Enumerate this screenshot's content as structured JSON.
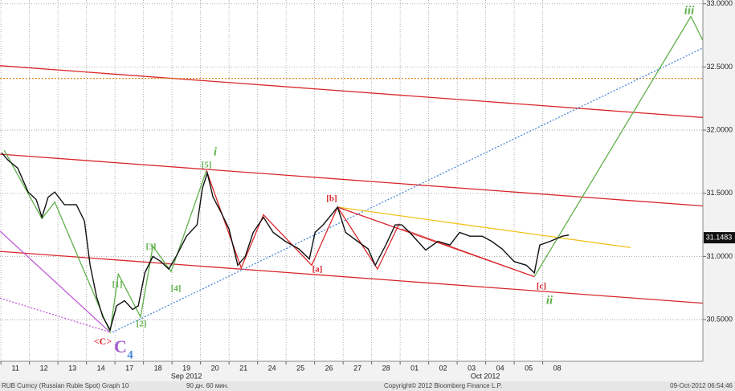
{
  "chart_data": {
    "type": "line",
    "xlim": [
      -0.54,
      24.11
    ],
    "ylim": [
      30.17,
      33.03
    ],
    "xticks": [
      {
        "value": 0,
        "label": "11"
      },
      {
        "value": 1,
        "label": "12"
      },
      {
        "value": 2,
        "label": "13"
      },
      {
        "value": 3,
        "label": "14"
      },
      {
        "value": 4,
        "label": "17"
      },
      {
        "value": 5,
        "label": "18"
      },
      {
        "value": 6,
        "label": "19"
      },
      {
        "value": 7,
        "label": "20"
      },
      {
        "value": 8,
        "label": "21"
      },
      {
        "value": 9,
        "label": "24"
      },
      {
        "value": 10,
        "label": "25"
      },
      {
        "value": 11,
        "label": "26"
      },
      {
        "value": 12,
        "label": "27"
      },
      {
        "value": 13,
        "label": "28"
      },
      {
        "value": 14,
        "label": "01"
      },
      {
        "value": 15,
        "label": "02"
      },
      {
        "value": 16,
        "label": "03"
      },
      {
        "value": 17,
        "label": "04"
      },
      {
        "value": 18,
        "label": "05"
      },
      {
        "value": 19,
        "label": "08"
      }
    ],
    "month_labels": [
      {
        "value": 6,
        "label": "Sep 2012"
      },
      {
        "value": 16.48,
        "label": "Oct 2012"
      }
    ],
    "yticks": [
      {
        "value": 30.5,
        "label": "30.5000"
      },
      {
        "value": 31,
        "label": "31.0000"
      },
      {
        "value": 31.5,
        "label": "31.5000"
      },
      {
        "value": 32,
        "label": "32.0000"
      },
      {
        "value": 32.5,
        "label": "32.5000"
      },
      {
        "value": 33,
        "label": "33.0000"
      }
    ],
    "grid": true,
    "last_price": 31.1483,
    "series": [
      {
        "color": "#111111",
        "x": [
          -0.48,
          -0.25,
          0.08,
          0.45,
          0.73,
          0.93,
          1.15,
          1.38,
          1.72,
          2.14,
          2.42,
          2.62,
          2.85,
          3.07,
          3.32,
          3.55,
          3.83,
          4.11,
          4.31,
          4.54,
          4.82,
          5.1,
          5.38,
          5.66,
          6.0,
          6.37,
          6.56,
          6.73,
          6.93,
          7.21,
          7.49,
          7.8,
          8.06,
          8.34,
          8.7,
          9.04,
          9.46,
          9.94,
          10.31,
          10.51,
          10.79,
          11.01,
          11.3,
          11.58,
          12.0,
          12.37,
          12.62,
          12.99,
          13.32,
          13.55,
          13.83,
          14.11,
          14.39,
          14.82,
          15.24,
          15.58,
          15.94,
          16.37,
          16.7,
          17.07,
          17.49,
          17.92,
          18.2,
          18.39,
          18.76,
          19.18,
          19.41
        ],
        "values": [
          31.82,
          31.76,
          31.7,
          31.51,
          31.45,
          31.31,
          31.47,
          31.51,
          31.41,
          31.41,
          31.28,
          30.93,
          30.68,
          30.52,
          30.42,
          30.61,
          30.65,
          30.58,
          30.61,
          30.87,
          31.0,
          30.96,
          30.9,
          31.01,
          31.16,
          31.25,
          31.54,
          31.66,
          31.47,
          31.35,
          31.22,
          30.93,
          31.0,
          31.19,
          31.31,
          31.19,
          31.12,
          31.06,
          30.98,
          31.19,
          31.25,
          31.31,
          31.39,
          31.19,
          31.12,
          31.06,
          30.93,
          31.09,
          31.25,
          31.25,
          31.19,
          31.12,
          31.05,
          31.12,
          31.09,
          31.19,
          31.16,
          31.16,
          31.12,
          31.06,
          30.96,
          30.93,
          30.87,
          31.09,
          31.12,
          31.16,
          31.17
        ]
      }
    ],
    "overlays": [
      {
        "color": "#d9262b",
        "style": "solid",
        "x": [
          -0.54,
          24.11
        ],
        "y": [
          32.51,
          32.1
        ]
      },
      {
        "color": "#d9262b",
        "style": "solid",
        "x": [
          -0.54,
          24.11
        ],
        "y": [
          31.81,
          31.4
        ]
      },
      {
        "color": "#d9262b",
        "style": "solid",
        "x": [
          -0.54,
          24.11
        ],
        "y": [
          31.04,
          30.63
        ]
      },
      {
        "color": "#e08a1e",
        "style": "dotted",
        "x": [
          -0.54,
          24.11
        ],
        "y": [
          32.41,
          32.41
        ]
      },
      {
        "color": "#4a86d8",
        "style": "dotted",
        "x": [
          3.41,
          24.11
        ],
        "y": [
          30.4,
          32.65
        ]
      },
      {
        "color": "#f2c21a",
        "style": "solid",
        "x": [
          11.3,
          21.58
        ],
        "y": [
          31.39,
          31.07
        ]
      },
      {
        "color": "#5fb04a",
        "style": "solid",
        "x": [
          -0.39,
          0.93,
          1.38,
          3.32,
          3.61,
          4.39,
          4.82,
          5.46,
          6.7
        ],
        "y": [
          31.84,
          31.3,
          31.43,
          30.4,
          30.86,
          30.52,
          31.08,
          30.88,
          31.68
        ]
      },
      {
        "color": "#5fb04a",
        "style": "solid",
        "x": [
          18.2,
          23.69,
          24.11
        ],
        "y": [
          30.84,
          32.9,
          32.71
        ]
      },
      {
        "color": "#d9262b",
        "style": "solid",
        "x": [
          6.7,
          7.92,
          8.7,
          10.39,
          11.3,
          12.7,
          13.46
        ],
        "y": [
          31.68,
          30.91,
          31.33,
          30.93,
          31.39,
          30.9,
          31.26
        ]
      },
      {
        "color": "#d9262b",
        "style": "solid",
        "x": [
          11.3,
          18.2
        ],
        "y": [
          31.39,
          30.84
        ]
      },
      {
        "color": "#d9262b",
        "style": "thin",
        "x": [
          13.55,
          18.2
        ],
        "y": [
          31.22,
          30.84
        ]
      },
      {
        "color": "#c05bd6",
        "style": "solid",
        "x": [
          -0.54,
          3.32
        ],
        "y": [
          31.2,
          30.4
        ]
      },
      {
        "color": "#c05bd6",
        "style": "dotted",
        "x": [
          -0.54,
          3.32
        ],
        "y": [
          30.67,
          30.4
        ]
      }
    ],
    "annotations": [
      {
        "text": "i",
        "color": "#5fb04a"
      },
      {
        "text": "[5]",
        "color": "#5fb04a"
      },
      {
        "text": "[b]",
        "color": "#d9262b"
      },
      {
        "text": "[3]",
        "color": "#5fb04a"
      },
      {
        "text": "[1]",
        "color": "#5fb04a"
      },
      {
        "text": "[4]",
        "color": "#5fb04a"
      },
      {
        "text": "[2]",
        "color": "#5fb04a"
      },
      {
        "text": "<C>",
        "color": "#d9262b"
      },
      {
        "text": "C",
        "color": "#a45fd0"
      },
      {
        "text": "4",
        "color": "#4a86d8"
      },
      {
        "text": "[a]",
        "color": "#d9262b"
      },
      {
        "text": "[c]",
        "color": "#d9262b"
      },
      {
        "text": "ii",
        "color": "#5fb04a"
      },
      {
        "text": "iii",
        "color": "#5fb04a"
      }
    ],
    "footer": [
      "RUB Curncy (Russian Ruble Spot) Graph 10",
      "90 дн. 60 мин.",
      "Copyright© 2012 Bloomberg Finance L.P.",
      "09-Oct-2012 06:54:46"
    ]
  }
}
